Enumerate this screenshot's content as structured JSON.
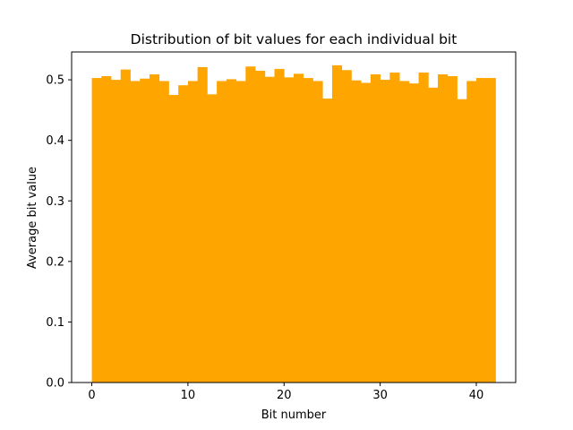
{
  "chart_data": {
    "type": "bar",
    "title": "Distribution of bit values for each individual bit",
    "xlabel": "Bit number",
    "ylabel": "Average bit value",
    "xlim": [
      -2.1,
      44.1
    ],
    "ylim": [
      0,
      0.546
    ],
    "xticks": [
      0,
      10,
      20,
      30,
      40
    ],
    "yticks": [
      0.0,
      0.1,
      0.2,
      0.3,
      0.4,
      0.5
    ],
    "ytick_labels": [
      "0.0",
      "0.1",
      "0.2",
      "0.3",
      "0.4",
      "0.5"
    ],
    "bar_width": 1,
    "grid": false,
    "colors": {
      "bars": "#ffa500",
      "axes": "#000000"
    },
    "x": [
      0,
      1,
      2,
      3,
      4,
      5,
      6,
      7,
      8,
      9,
      10,
      11,
      12,
      13,
      14,
      15,
      16,
      17,
      18,
      19,
      20,
      21,
      22,
      23,
      24,
      25,
      26,
      27,
      28,
      29,
      30,
      31,
      32,
      33,
      34,
      35,
      36,
      37,
      38,
      39,
      40,
      41
    ],
    "values": [
      0.503,
      0.506,
      0.5,
      0.517,
      0.498,
      0.502,
      0.509,
      0.498,
      0.475,
      0.491,
      0.498,
      0.521,
      0.476,
      0.498,
      0.501,
      0.498,
      0.522,
      0.515,
      0.505,
      0.518,
      0.504,
      0.51,
      0.503,
      0.498,
      0.469,
      0.524,
      0.516,
      0.499,
      0.495,
      0.509,
      0.5,
      0.512,
      0.498,
      0.494,
      0.512,
      0.487,
      0.509,
      0.506,
      0.468,
      0.498,
      0.503,
      0.503
    ]
  }
}
